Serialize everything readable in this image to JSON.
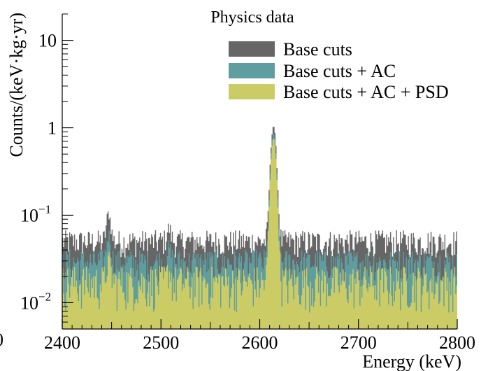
{
  "chart_data": {
    "type": "area",
    "title": "Physics data",
    "xlabel": "Energy (keV)",
    "ylabel": "Counts/(keV·kg·yr)",
    "xlim": [
      2400,
      2800
    ],
    "ylim": [
      0.005,
      20
    ],
    "yscale": "log",
    "x_ticks": [
      2400,
      2500,
      2600,
      2700,
      2800
    ],
    "x_tick_labels": [
      "2400",
      "2500",
      "2600",
      "2700",
      "2800"
    ],
    "y_ticks": [
      0.01,
      0.1,
      1,
      10
    ],
    "y_tick_labels": [
      {
        "base": "10",
        "exp": "−2"
      },
      {
        "base": "10",
        "exp": "−1"
      },
      {
        "base": "1",
        "exp": ""
      },
      {
        "base": "10",
        "exp": ""
      }
    ],
    "partial_tick_label": "0",
    "legend_position": "top-right",
    "bin_width_kev": 1,
    "series": [
      {
        "name": "Base cuts",
        "color": "#666666",
        "baseline": 0.05,
        "jitter_lo": 0.65,
        "jitter_hi": 1.35,
        "peaks": [
          {
            "center": 2614,
            "amplitude": 1.0,
            "sigma": 2.3
          },
          {
            "center": 2447,
            "amplitude": 0.055,
            "sigma": 2.0
          },
          {
            "center": 2508,
            "amplitude": 0.02,
            "sigma": 2.0
          }
        ]
      },
      {
        "name": "Base cuts + AC",
        "color": "#5f9ea0",
        "baseline": 0.029,
        "jitter_lo": 0.6,
        "jitter_hi": 1.4,
        "peaks": [
          {
            "center": 2614,
            "amplitude": 0.85,
            "sigma": 2.3
          },
          {
            "center": 2447,
            "amplitude": 0.03,
            "sigma": 2.0
          },
          {
            "center": 2508,
            "amplitude": 0.012,
            "sigma": 2.0
          }
        ]
      },
      {
        "name": "Base cuts + AC + PSD",
        "color": "#cccc66",
        "baseline": 0.017,
        "jitter_lo": 0.45,
        "jitter_hi": 1.55,
        "peaks": [
          {
            "center": 2614,
            "amplitude": 0.75,
            "sigma": 2.3
          },
          {
            "center": 2447,
            "amplitude": 0.013,
            "sigma": 2.0
          },
          {
            "center": 2508,
            "amplitude": 0.006,
            "sigma": 2.0
          }
        ]
      }
    ]
  }
}
